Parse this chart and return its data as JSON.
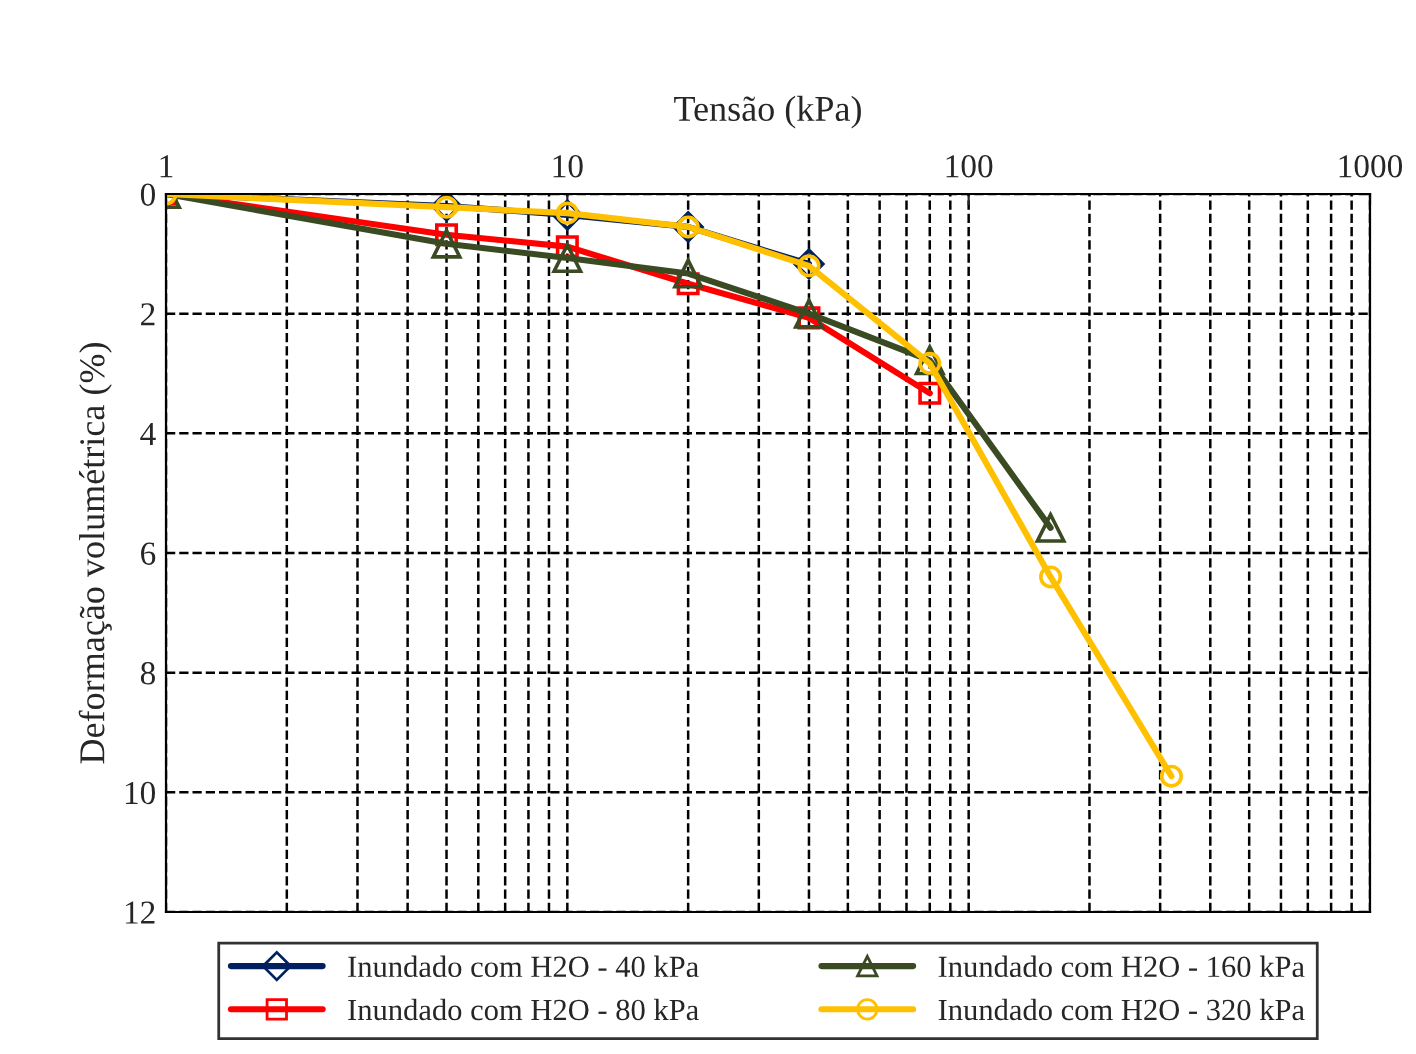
{
  "chart_data": {
    "type": "line",
    "xlabel": "Tensão (kPa)",
    "ylabel": "Deformação volumétrica (%)",
    "log": "x",
    "xlim": [
      1,
      1000
    ],
    "xticks": [
      1,
      10,
      100,
      1000
    ],
    "ylim": [
      12,
      0
    ],
    "yticks": [
      0,
      2,
      4,
      6,
      8,
      10,
      12
    ],
    "grid": true,
    "legend": "bottom",
    "line_style": "solid",
    "series": [
      {
        "name": "Inundado com H2O - 40 kPa",
        "color": "#002060",
        "marker": "diamond",
        "x": [
          1,
          5,
          10,
          20,
          40
        ],
        "values": [
          0,
          0.2,
          0.35,
          0.55,
          1.17
        ]
      },
      {
        "name": "Inundado com H2O - 80 kPa",
        "color": "#ff0000",
        "marker": "square",
        "x": [
          1,
          5,
          10,
          20,
          40,
          80
        ],
        "values": [
          0,
          0.68,
          0.88,
          1.5,
          2.07,
          3.33
        ]
      },
      {
        "name": "Inundado com H2O - 160 kPa",
        "color": "#3a4a22",
        "marker": "triangle",
        "x": [
          1,
          5,
          10,
          20,
          40,
          80,
          160
        ],
        "values": [
          0,
          0.83,
          1.07,
          1.33,
          2.0,
          2.78,
          5.58
        ]
      },
      {
        "name": "Inundado com H2O - 320 kPa",
        "color": "#ffc000",
        "marker": "circle",
        "x": [
          1,
          5,
          10,
          20,
          40,
          80,
          160,
          320
        ],
        "values": [
          0,
          0.22,
          0.32,
          0.55,
          1.2,
          2.83,
          6.4,
          9.73
        ]
      }
    ]
  }
}
